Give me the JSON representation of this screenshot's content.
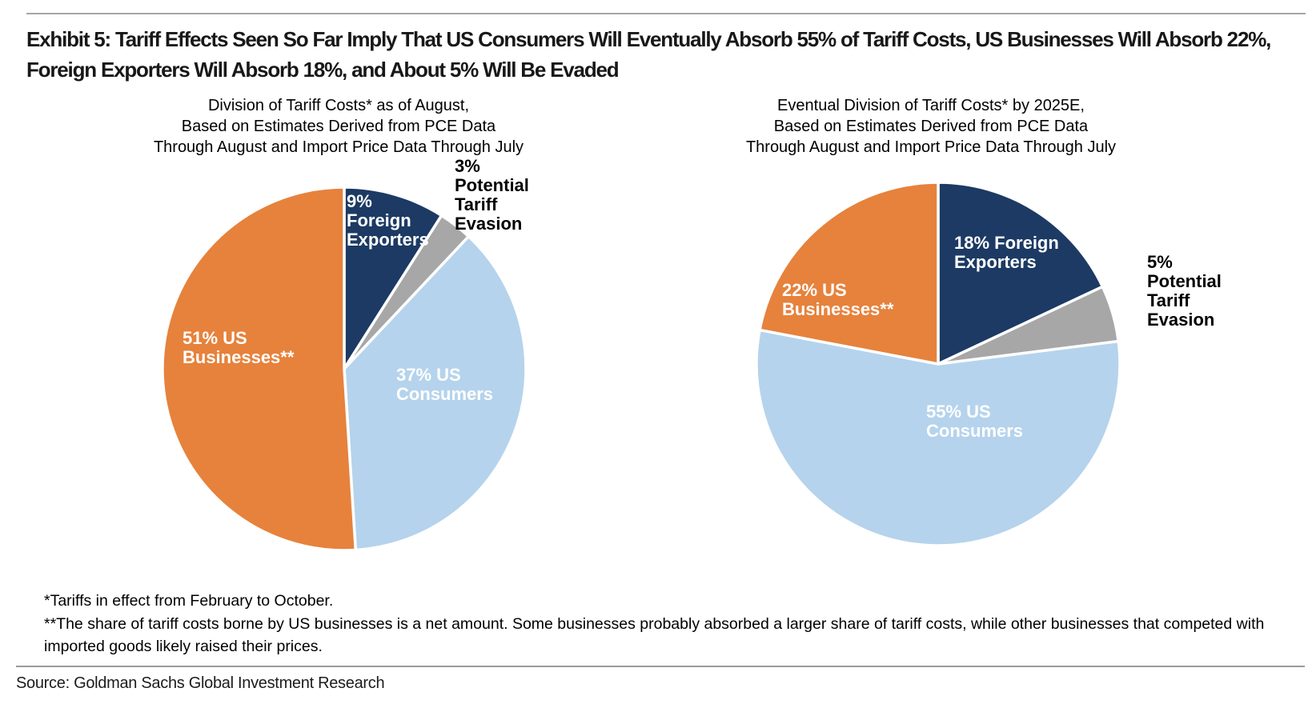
{
  "header": {
    "title": "Exhibit 5: Tariff Effects Seen So Far Imply That US Consumers Will Eventually Absorb 55% of Tariff Costs, US Businesses Will Absorb 22%, Foreign Exporters Will Absorb 18%, and About 5% Will Be Evaded"
  },
  "chart_data": [
    {
      "type": "pie",
      "title": "Division of Tariff Costs* as of August,\nBased on Estimates Derived from PCE Data\nThrough August and Import Price Data Through July",
      "start_angle_deg": 0,
      "direction": "clockwise",
      "unit": "%",
      "slices": [
        {
          "name": "Foreign Exporters",
          "value": 9,
          "color": "#1C3A63",
          "text_color": "#ffffff",
          "display": "9%\nForeign\nExporters",
          "label_position": "inside"
        },
        {
          "name": "Potential Tariff Evasion",
          "value": 3,
          "color": "#A7A7A7",
          "text_color": "#000000",
          "display": "3%\nPotential\nTariff\nEvasion",
          "label_position": "outside"
        },
        {
          "name": "US Consumers",
          "value": 37,
          "color": "#B5D3EC",
          "text_color": "#ffffff",
          "display": "37% US\nConsumers",
          "label_position": "inside"
        },
        {
          "name": "US Businesses",
          "value": 51,
          "color": "#E6823C",
          "text_color": "#ffffff",
          "display": "51% US\nBusinesses**",
          "label_position": "inside"
        }
      ]
    },
    {
      "type": "pie",
      "title": "Eventual Division of Tariff Costs* by 2025E,\nBased on Estimates Derived from PCE Data\nThrough August and Import Price Data Through July",
      "start_angle_deg": 0,
      "direction": "clockwise",
      "unit": "%",
      "slices": [
        {
          "name": "Foreign Exporters",
          "value": 18,
          "color": "#1C3A63",
          "text_color": "#ffffff",
          "display": "18% Foreign\nExporters",
          "label_position": "inside"
        },
        {
          "name": "Potential Tariff Evasion",
          "value": 5,
          "color": "#A7A7A7",
          "text_color": "#000000",
          "display": "5%\nPotential\nTariff\nEvasion",
          "label_position": "outside"
        },
        {
          "name": "US Consumers",
          "value": 55,
          "color": "#B5D3EC",
          "text_color": "#ffffff",
          "display": "55% US\nConsumers",
          "label_position": "inside"
        },
        {
          "name": "US Businesses",
          "value": 22,
          "color": "#E6823C",
          "text_color": "#ffffff",
          "display": "22% US\nBusinesses**",
          "label_position": "inside"
        }
      ]
    }
  ],
  "footnotes": {
    "text": "*Tariffs in effect from February to October.\n**The share of tariff costs borne by US businesses is a net amount. Some businesses probably absorbed a larger share of tariff costs, while other businesses that competed with imported goods likely raised their prices."
  },
  "source": {
    "text": "Source: Goldman Sachs Global Investment Research"
  },
  "colors": {
    "navy": "#1C3A63",
    "gray": "#A7A7A7",
    "light_blue": "#B5D3EC",
    "orange": "#E6823C",
    "rule": "#A6A6A6"
  }
}
